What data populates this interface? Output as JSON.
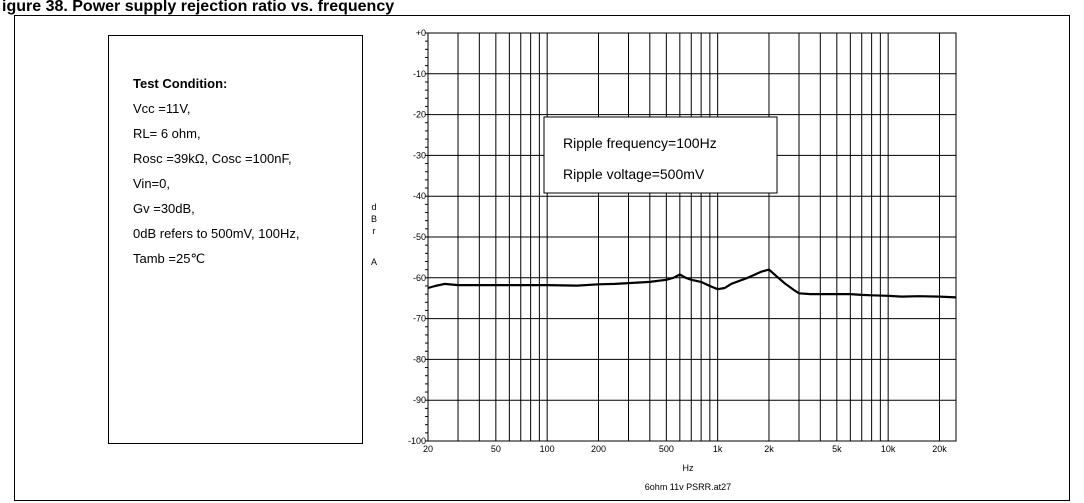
{
  "figure": {
    "title": "igure 38. Power supply rejection ratio vs. frequency"
  },
  "test_condition": {
    "heading": "Test Condition:",
    "lines": [
      "Vcc =11V,",
      "RL= 6 ohm,",
      "Rosc =39kΩ, Cosc =100nF,",
      "Vin=0,",
      "Gv =30dB,",
      "0dB refers to 500mV, 100Hz,",
      "Tamb =25℃"
    ]
  },
  "chart_data": {
    "type": "line",
    "xscale": "log",
    "xlim": [
      20,
      25000
    ],
    "ylim": [
      -100,
      0
    ],
    "xlabel": "Hz",
    "ylabel_letters": [
      "d",
      "B",
      "r",
      "A"
    ],
    "footer": "6ohm 11v PSRR.at27",
    "y_ticks": [
      0,
      -10,
      -20,
      -30,
      -40,
      -50,
      -60,
      -70,
      -80,
      -90,
      -100
    ],
    "y_tick_labels": [
      "+0",
      "-10",
      "-20",
      "-30",
      "-40",
      "-50",
      "-60",
      "-70",
      "-80",
      "-90",
      "-100"
    ],
    "x_ticks": [
      20,
      50,
      100,
      200,
      500,
      1000,
      2000,
      5000,
      10000,
      20000
    ],
    "x_tick_labels": [
      "20",
      "50",
      "100",
      "200",
      "500",
      "1k",
      "2k",
      "5k",
      "10k",
      "20k"
    ],
    "annotation": [
      "Ripple frequency=100Hz",
      "Ripple voltage=500mV"
    ],
    "line_color": "#000000",
    "grid": true,
    "series": [
      {
        "x": [
          20,
          22,
          25,
          30,
          40,
          50,
          60,
          80,
          100,
          150,
          200,
          250,
          300,
          400,
          500,
          550,
          600,
          650,
          700,
          800,
          900,
          1000,
          1100,
          1200,
          1500,
          1800,
          2000,
          2200,
          2500,
          2800,
          3000,
          3500,
          4000,
          5000,
          6000,
          7000,
          8000,
          10000,
          12000,
          15000,
          20000,
          25000
        ],
        "y": [
          -62.5,
          -62,
          -61.5,
          -61.8,
          -61.8,
          -61.8,
          -61.8,
          -61.8,
          -61.8,
          -61.9,
          -61.6,
          -61.5,
          -61.3,
          -61,
          -60.5,
          -60,
          -59.2,
          -60,
          -60.5,
          -61,
          -62,
          -62.8,
          -62.5,
          -61.5,
          -60,
          -58.5,
          -58,
          -59.5,
          -61.5,
          -63,
          -63.8,
          -64,
          -64,
          -64,
          -64,
          -64.2,
          -64.3,
          -64.4,
          -64.6,
          -64.5,
          -64.6,
          -64.8
        ]
      }
    ]
  }
}
